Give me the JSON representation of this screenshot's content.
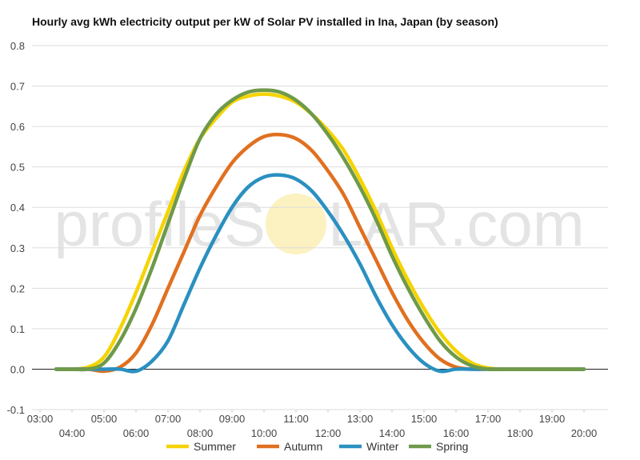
{
  "chart_data": {
    "type": "line",
    "title": "Hourly avg kWh electricity output per kW of Solar PV installed in Ina, Japan (by season)",
    "xlabel": "",
    "ylabel": "",
    "ylim": [
      -0.1,
      0.8
    ],
    "yticks": [
      "-0.1",
      "0.0",
      "0.1",
      "0.2",
      "0.3",
      "0.4",
      "0.5",
      "0.6",
      "0.7",
      "0.8"
    ],
    "x_labels": [
      "03:00",
      "04:00",
      "05:00",
      "06:00",
      "07:00",
      "08:00",
      "09:00",
      "10:00",
      "11:00",
      "12:00",
      "13:00",
      "14:00",
      "15:00",
      "16:00",
      "17:00",
      "18:00",
      "19:00",
      "20:00"
    ],
    "x": [
      3.5,
      4,
      4.5,
      5,
      5.5,
      6,
      6.5,
      7,
      7.5,
      8,
      8.5,
      9,
      9.5,
      10,
      10.5,
      11,
      11.5,
      12,
      12.5,
      13,
      13.5,
      14,
      14.5,
      15,
      15.5,
      16,
      16.5,
      17,
      17.5,
      18,
      18.5,
      19,
      19.5,
      20
    ],
    "grid": true,
    "legend_position": "bottom",
    "series": [
      {
        "name": "Summer",
        "color": "#f5d300",
        "values": [
          0.0,
          0.0,
          0.005,
          0.03,
          0.1,
          0.19,
          0.29,
          0.39,
          0.49,
          0.57,
          0.62,
          0.66,
          0.675,
          0.68,
          0.675,
          0.66,
          0.63,
          0.59,
          0.54,
          0.47,
          0.39,
          0.3,
          0.22,
          0.15,
          0.09,
          0.045,
          0.015,
          0.003,
          0.0,
          0.0,
          0.0,
          0.0,
          0.0,
          0.0
        ]
      },
      {
        "name": "Autumn",
        "color": "#e07020",
        "values": [
          0.0,
          0.0,
          0.0,
          -0.005,
          0.005,
          0.04,
          0.11,
          0.2,
          0.29,
          0.38,
          0.45,
          0.51,
          0.55,
          0.575,
          0.58,
          0.57,
          0.54,
          0.49,
          0.43,
          0.35,
          0.27,
          0.19,
          0.12,
          0.065,
          0.025,
          0.005,
          0.0,
          0.0,
          0.0,
          0.0,
          0.0,
          0.0,
          0.0,
          0.0
        ]
      },
      {
        "name": "Winter",
        "color": "#2a90c0",
        "values": [
          0.0,
          0.0,
          0.0,
          0.0,
          0.0,
          -0.005,
          0.02,
          0.07,
          0.16,
          0.25,
          0.33,
          0.4,
          0.45,
          0.475,
          0.48,
          0.47,
          0.44,
          0.39,
          0.33,
          0.26,
          0.18,
          0.11,
          0.055,
          0.015,
          -0.005,
          0.0,
          0.0,
          0.0,
          0.0,
          0.0,
          0.0,
          0.0,
          0.0,
          0.0
        ]
      },
      {
        "name": "Spring",
        "color": "#6e9a4a",
        "values": [
          0.0,
          0.0,
          0.0,
          0.015,
          0.07,
          0.15,
          0.25,
          0.36,
          0.47,
          0.57,
          0.63,
          0.665,
          0.685,
          0.69,
          0.685,
          0.665,
          0.63,
          0.58,
          0.52,
          0.45,
          0.37,
          0.28,
          0.2,
          0.13,
          0.07,
          0.03,
          0.008,
          0.0,
          0.0,
          0.0,
          0.0,
          0.0,
          0.0,
          0.0
        ]
      }
    ]
  },
  "watermark": {
    "text_left": "profileS",
    "text_right": "LAR.com"
  }
}
